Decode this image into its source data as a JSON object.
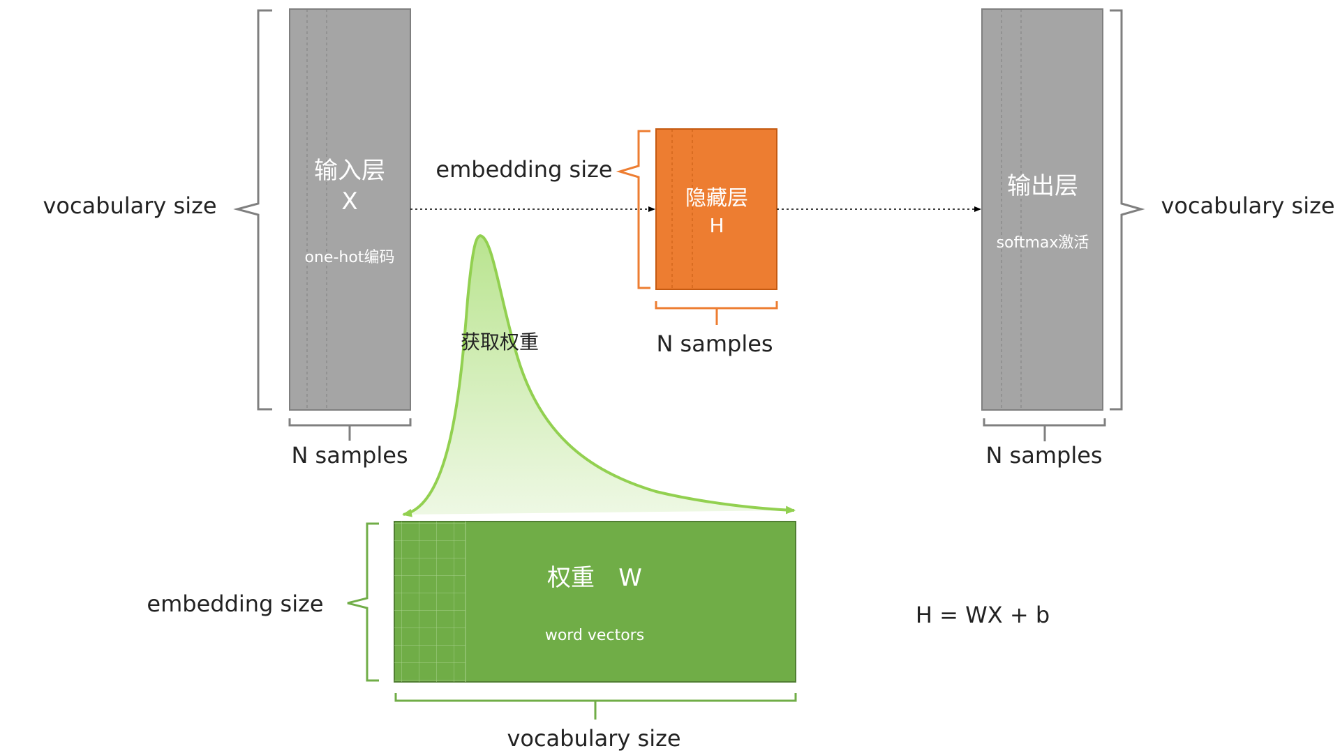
{
  "colors": {
    "gray_box": "#a5a5a5",
    "orange_box": "#ed7d31",
    "green_box": "#70ad47",
    "green_curve": "#92d050",
    "brace_gray": "#7f7f7f",
    "brace_orange": "#ed7d31",
    "brace_green": "#70ad47"
  },
  "input_layer": {
    "title": "输入层",
    "symbol": "X",
    "encoding": "one-hot编码",
    "height_label": "vocabulary size",
    "width_label": "N samples"
  },
  "hidden_layer": {
    "title": "隐藏层",
    "symbol": "H",
    "height_label": "embedding size",
    "width_label": "N samples"
  },
  "output_layer": {
    "title": "输出层",
    "activation": "softmax激活",
    "height_label": "vocabulary size",
    "width_label": "N samples"
  },
  "weights": {
    "title": "权重",
    "symbol": "W",
    "subtitle": "word vectors",
    "height_label": "embedding size",
    "width_label": "vocabulary size",
    "lookup_label": "获取权重"
  },
  "formula": "H = WX + b"
}
